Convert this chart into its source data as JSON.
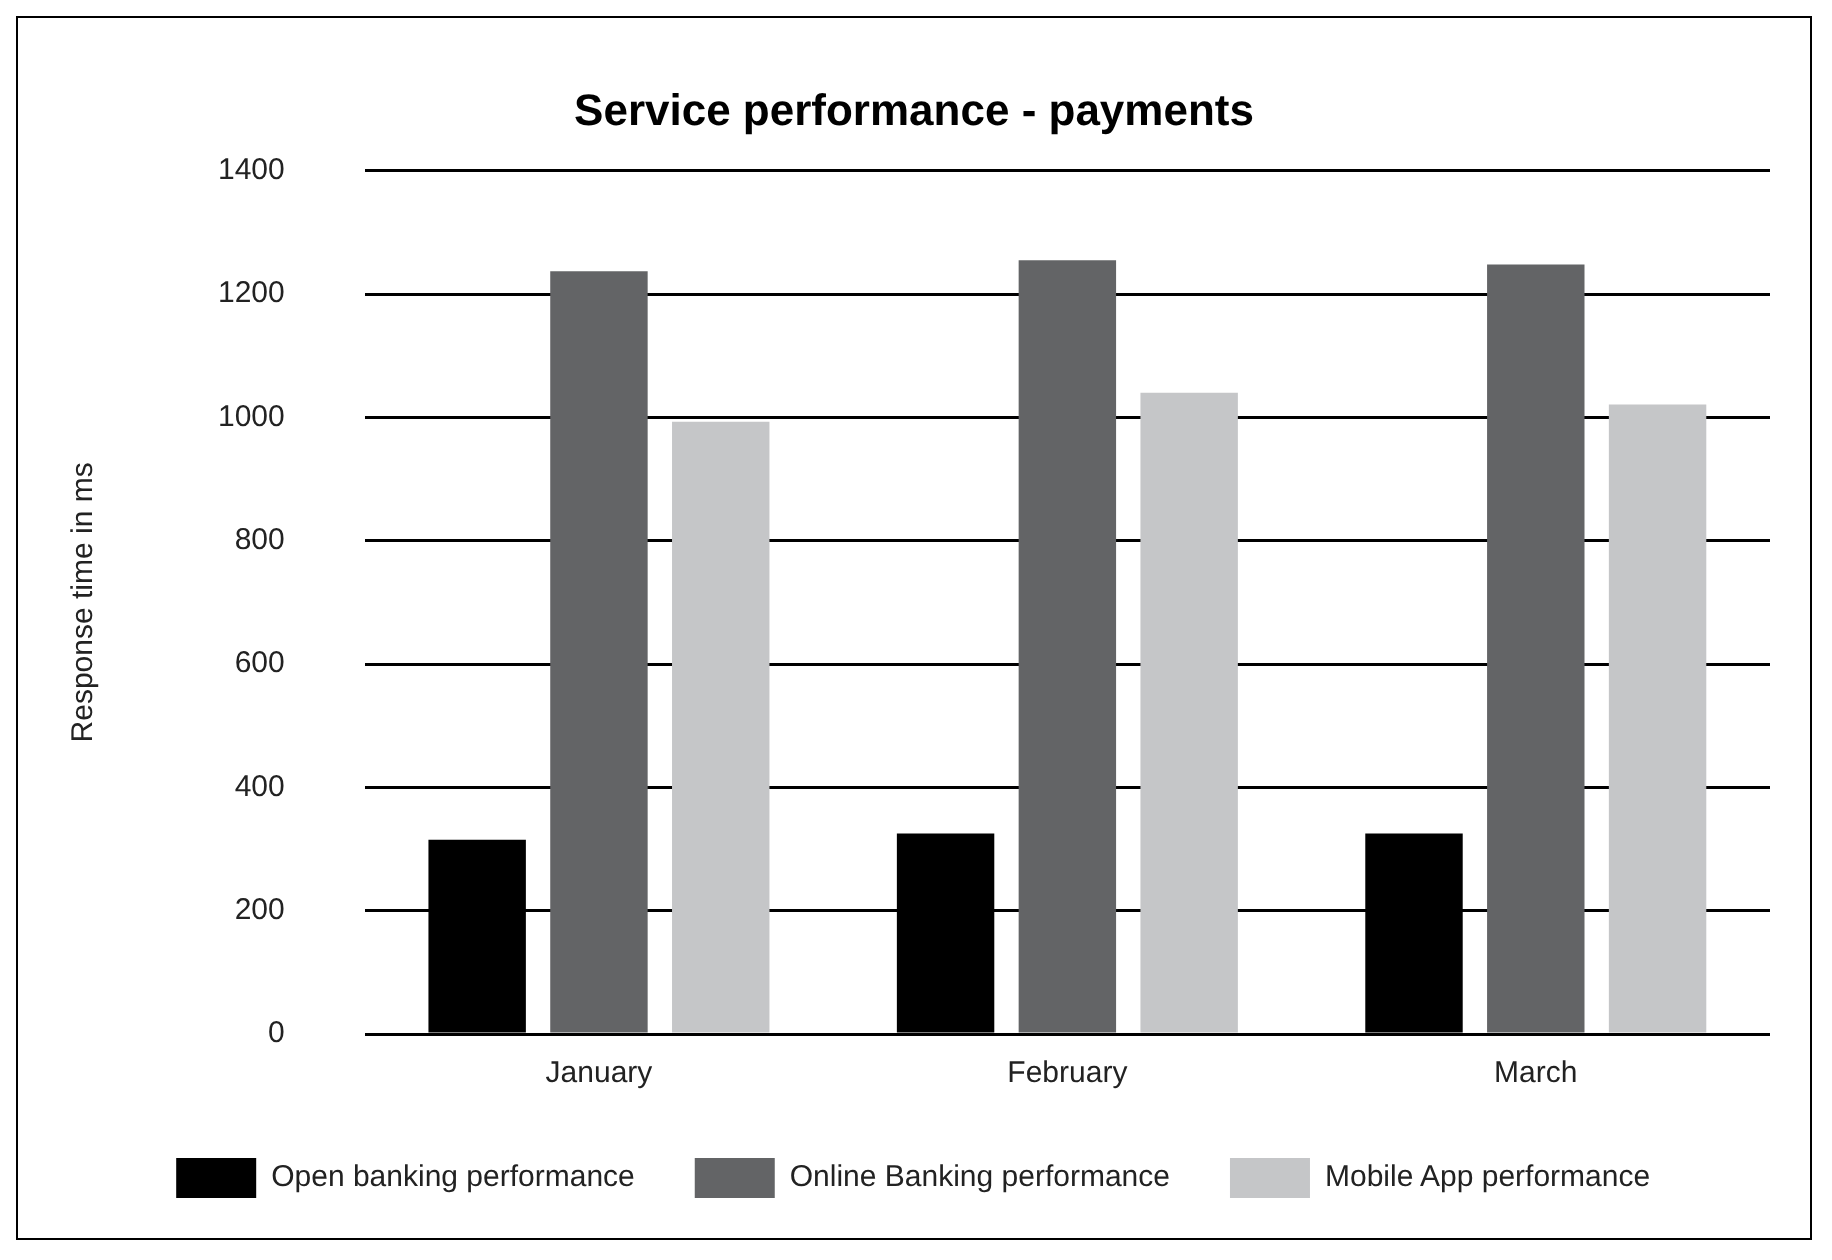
{
  "chart_data": {
    "type": "bar",
    "title": "Service performance - payments",
    "ylabel": "Response time in ms",
    "categories": [
      "January",
      "February",
      "March"
    ],
    "series": [
      {
        "name": "Open banking performance",
        "color": "#000000",
        "values": [
          315,
          325,
          325
        ]
      },
      {
        "name": "Online Banking performance",
        "color": "#636466",
        "values": [
          1237,
          1255,
          1248
        ]
      },
      {
        "name": "Mobile App performance",
        "color": "#c5c6c8",
        "values": [
          993,
          1040,
          1021
        ]
      }
    ],
    "ylim": [
      0,
      1400
    ],
    "yticks": [
      0,
      200,
      400,
      600,
      800,
      1000,
      1200,
      1400
    ],
    "grid": "y",
    "legend": "bottom"
  }
}
